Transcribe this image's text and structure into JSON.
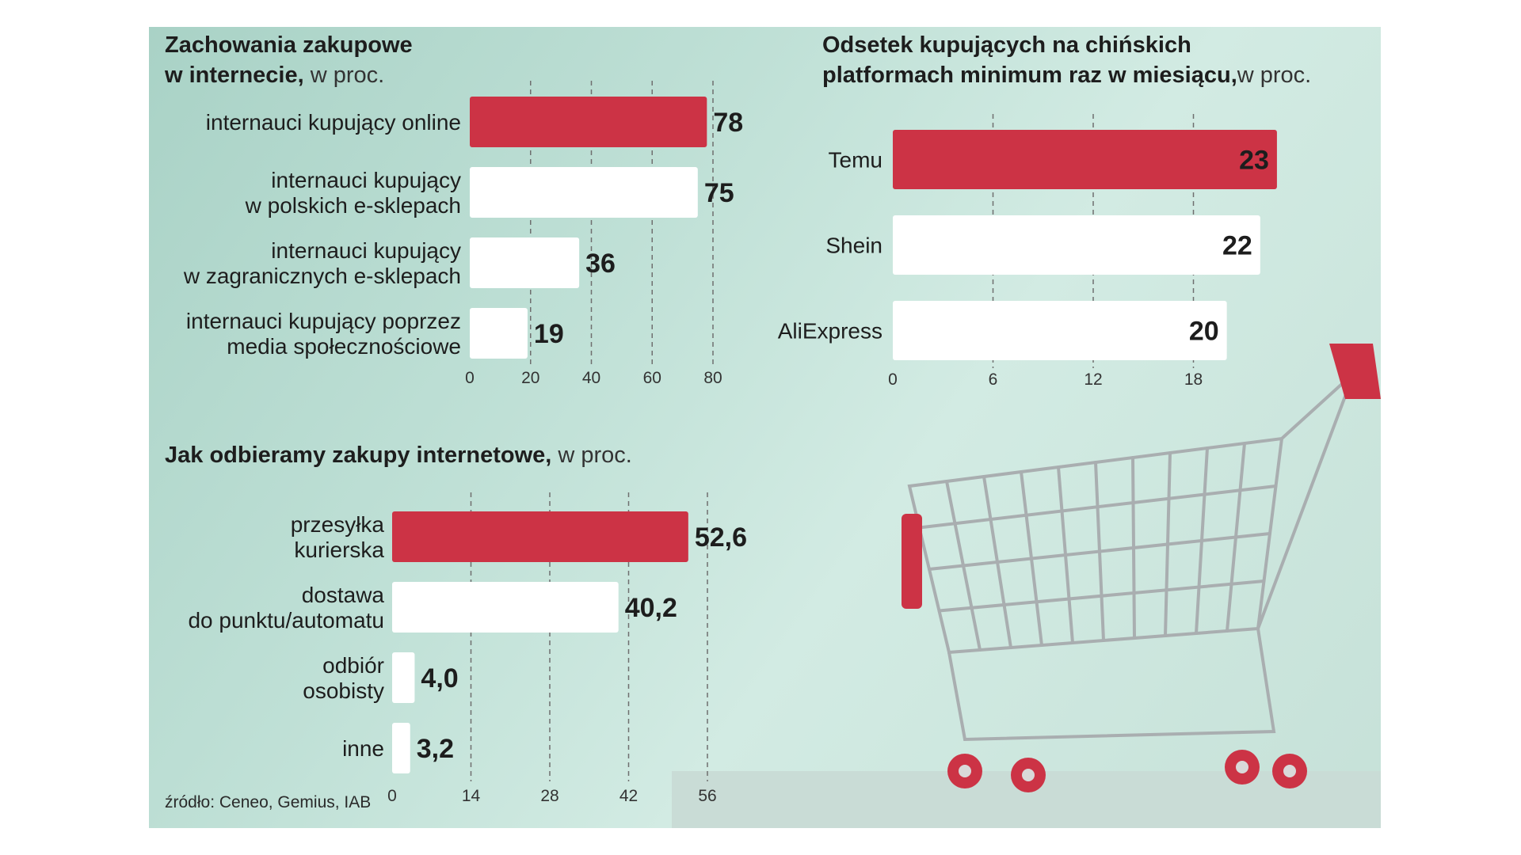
{
  "colors": {
    "highlight": "#cc3345",
    "normal": "#ffffff",
    "grid": "#6f6f6f",
    "panel": "#bfe0d6"
  },
  "source": "źródło: Ceneo, Gemius, IAB",
  "charts": [
    {
      "id": "behaviours",
      "title": "Zachowania zakupowe",
      "title_line2": "w internecie,",
      "unit": "w proc."
    },
    {
      "id": "chinese",
      "title": "Odsetek kupujących na chińskich",
      "title_line2": "platformach minimum raz w miesiącu,",
      "unit": "w proc."
    },
    {
      "id": "delivery",
      "title": "Jak odbieramy zakupy internetowe,",
      "title_line2": "",
      "unit": "w proc."
    }
  ],
  "chart_data": [
    {
      "type": "bar",
      "orientation": "horizontal",
      "title": "Zachowania zakupowe w internecie, w proc.",
      "categories": [
        [
          "internauci kupujący online"
        ],
        [
          "internauci kupujący",
          "w polskich e-sklepach"
        ],
        [
          "internauci kupujący",
          "w zagranicznych e-sklepach"
        ],
        [
          "internauci kupujący poprzez",
          "media społecznościowe"
        ]
      ],
      "values": [
        78,
        75,
        36,
        19
      ],
      "value_labels": [
        "78",
        "75",
        "36",
        "19"
      ],
      "highlight": [
        true,
        false,
        false,
        false
      ],
      "xlim": [
        0,
        80
      ],
      "ticks": [
        0,
        20,
        40,
        60,
        80
      ],
      "grid": true
    },
    {
      "type": "bar",
      "orientation": "horizontal",
      "title": "Odsetek kupujących na chińskich platformach minimum raz w miesiącu, w proc.",
      "categories": [
        [
          "Temu"
        ],
        [
          "Shein"
        ],
        [
          "AliExpress"
        ]
      ],
      "values": [
        23,
        22,
        20
      ],
      "value_labels": [
        "23",
        "22",
        "20"
      ],
      "highlight": [
        true,
        false,
        false
      ],
      "xlim": [
        0,
        24
      ],
      "ticks": [
        0,
        6,
        12,
        18
      ],
      "grid": true
    },
    {
      "type": "bar",
      "orientation": "horizontal",
      "title": "Jak odbieramy zakupy internetowe, w proc.",
      "categories": [
        [
          "przesyłka",
          "kurierska"
        ],
        [
          "dostawa",
          "do punktu/automatu"
        ],
        [
          "odbiór",
          "osobisty"
        ],
        [
          "inne"
        ]
      ],
      "values": [
        52.6,
        40.2,
        4.0,
        3.2
      ],
      "value_labels": [
        "52,6",
        "40,2",
        "4,0",
        "3,2"
      ],
      "highlight": [
        true,
        false,
        false,
        false
      ],
      "xlim": [
        0,
        56
      ],
      "ticks": [
        0,
        14,
        28,
        42,
        56
      ],
      "grid": true
    }
  ]
}
